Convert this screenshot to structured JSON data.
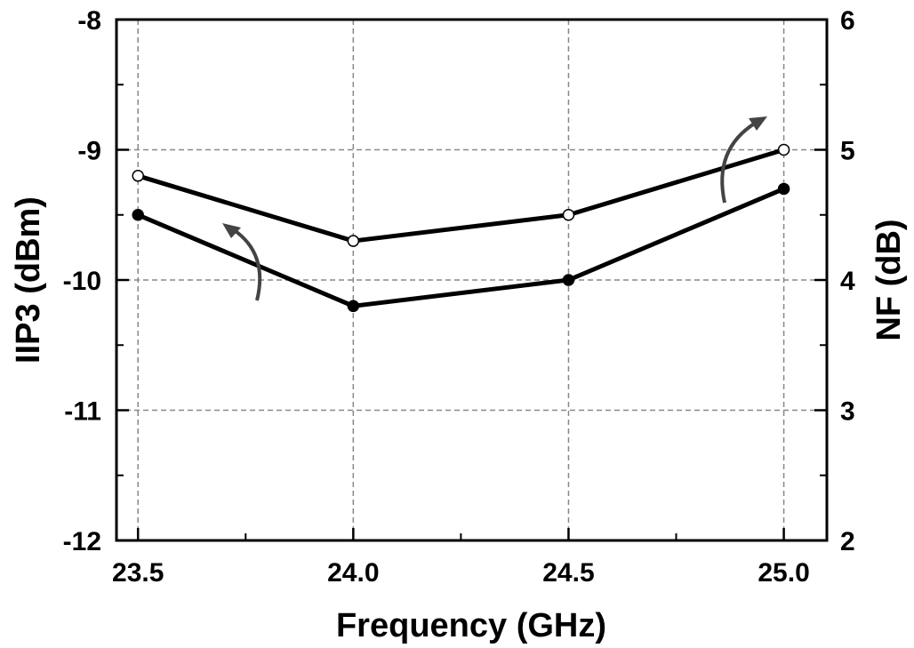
{
  "chart_data": {
    "type": "line",
    "title": "",
    "xlabel": "Frequency (GHz)",
    "ylabel": "IIP3 (dBm)",
    "ylabel_right": "NF (dB)",
    "x": [
      23.5,
      24.0,
      24.5,
      25.0
    ],
    "x_ticks": [
      "23.5",
      "24.0",
      "24.5",
      "25.0"
    ],
    "xlim": [
      23.45,
      25.1
    ],
    "ylim": [
      -12,
      -8
    ],
    "y_ticks": [
      "-12",
      "-11",
      "-10",
      "-9",
      "-8"
    ],
    "ylim_right": [
      2,
      6
    ],
    "y_ticks_right": [
      "2",
      "3",
      "4",
      "5",
      "6"
    ],
    "grid": true,
    "series": [
      {
        "axis": "left",
        "marker": "filled-circle",
        "values": [
          -9.5,
          -10.2,
          -10.0,
          -9.3
        ],
        "arrow": "points-left"
      },
      {
        "axis": "right",
        "marker": "open-circle",
        "values": [
          4.8,
          4.3,
          4.5,
          5.0
        ],
        "arrow": "points-right"
      }
    ],
    "colors": {
      "line": "#000000",
      "grid": "#888888",
      "arrow": "#444444"
    }
  }
}
